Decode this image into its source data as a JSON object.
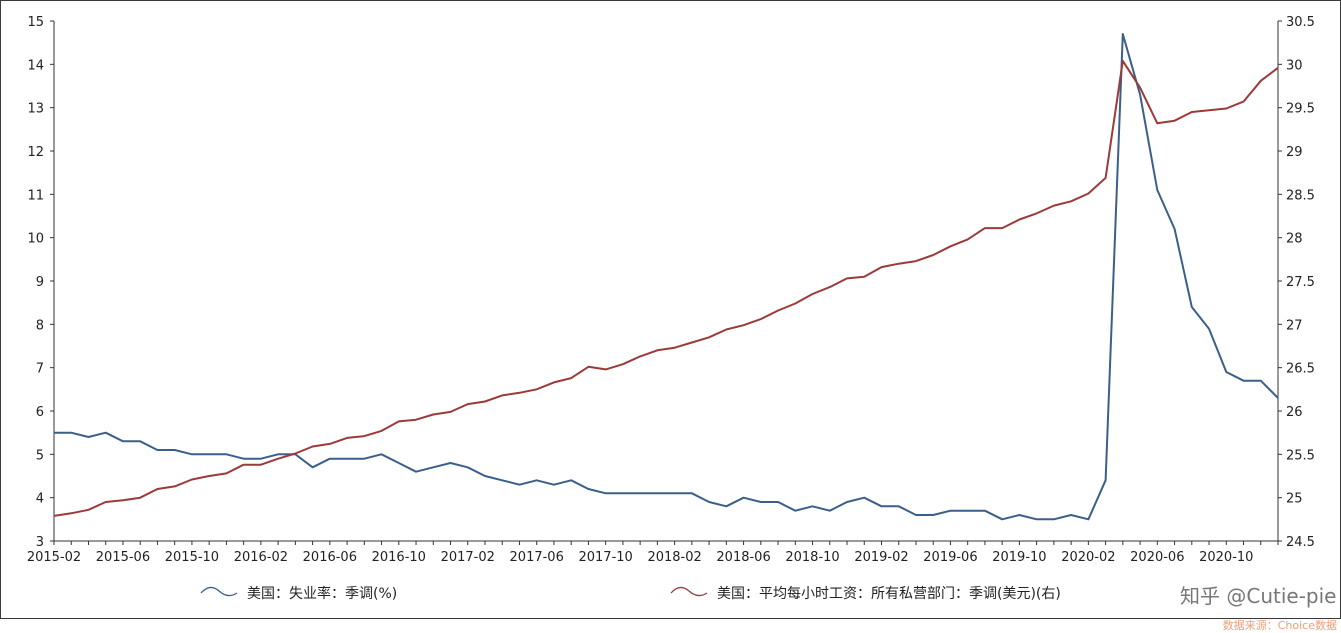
{
  "chart_data": {
    "type": "line",
    "x": [
      "2015-02",
      "2015-03",
      "2015-04",
      "2015-05",
      "2015-06",
      "2015-07",
      "2015-08",
      "2015-09",
      "2015-10",
      "2015-11",
      "2015-12",
      "2016-01",
      "2016-02",
      "2016-03",
      "2016-04",
      "2016-05",
      "2016-06",
      "2016-07",
      "2016-08",
      "2016-09",
      "2016-10",
      "2016-11",
      "2016-12",
      "2017-01",
      "2017-02",
      "2017-03",
      "2017-04",
      "2017-05",
      "2017-06",
      "2017-07",
      "2017-08",
      "2017-09",
      "2017-10",
      "2017-11",
      "2017-12",
      "2018-01",
      "2018-02",
      "2018-03",
      "2018-04",
      "2018-05",
      "2018-06",
      "2018-07",
      "2018-08",
      "2018-09",
      "2018-10",
      "2018-11",
      "2018-12",
      "2019-01",
      "2019-02",
      "2019-03",
      "2019-04",
      "2019-05",
      "2019-06",
      "2019-07",
      "2019-08",
      "2019-09",
      "2019-10",
      "2019-11",
      "2019-12",
      "2020-01",
      "2020-02",
      "2020-03",
      "2020-04",
      "2020-05",
      "2020-06",
      "2020-07",
      "2020-08",
      "2020-09",
      "2020-10",
      "2020-11",
      "2020-12",
      "2021-01"
    ],
    "x_tick_labels": [
      "2015-02",
      "2015-06",
      "2015-10",
      "2016-02",
      "2016-06",
      "2016-10",
      "2017-02",
      "2017-06",
      "2017-10",
      "2018-02",
      "2018-06",
      "2018-10",
      "2019-02",
      "2019-06",
      "2019-10",
      "2020-02",
      "2020-06",
      "2020-10"
    ],
    "series": [
      {
        "name": "美国：失业率：季调(%)",
        "axis": "left",
        "color": "#3b5f8a",
        "values": [
          5.5,
          5.5,
          5.4,
          5.5,
          5.3,
          5.3,
          5.1,
          5.1,
          5.0,
          5.0,
          5.0,
          4.9,
          4.9,
          5.0,
          5.0,
          4.7,
          4.9,
          4.9,
          4.9,
          5.0,
          4.8,
          4.6,
          4.7,
          4.8,
          4.7,
          4.5,
          4.4,
          4.3,
          4.4,
          4.3,
          4.4,
          4.2,
          4.1,
          4.1,
          4.1,
          4.1,
          4.1,
          4.1,
          3.9,
          3.8,
          4.0,
          3.9,
          3.9,
          3.7,
          3.8,
          3.7,
          3.9,
          4.0,
          3.8,
          3.8,
          3.6,
          3.6,
          3.7,
          3.7,
          3.7,
          3.5,
          3.6,
          3.5,
          3.5,
          3.6,
          3.5,
          4.4,
          14.7,
          13.3,
          11.1,
          10.2,
          8.4,
          7.9,
          6.9,
          6.7,
          6.7,
          6.3
        ]
      },
      {
        "name": "美国：平均每小时工资：所有私营部门：季调(美元)(右)",
        "axis": "right",
        "color": "#9c3a3a",
        "values": [
          24.79,
          24.82,
          24.86,
          24.95,
          24.97,
          25.0,
          25.1,
          25.13,
          25.21,
          25.25,
          25.28,
          25.38,
          25.38,
          25.45,
          25.51,
          25.59,
          25.62,
          25.69,
          25.71,
          25.77,
          25.88,
          25.9,
          25.96,
          25.99,
          26.08,
          26.11,
          26.18,
          26.21,
          26.25,
          26.33,
          26.38,
          26.51,
          26.48,
          26.54,
          26.63,
          26.7,
          26.73,
          26.79,
          26.85,
          26.94,
          26.99,
          27.06,
          27.16,
          27.24,
          27.35,
          27.43,
          27.53,
          27.55,
          27.66,
          27.7,
          27.73,
          27.8,
          27.9,
          27.98,
          28.11,
          28.11,
          28.21,
          28.28,
          28.37,
          28.42,
          28.51,
          28.69,
          30.04,
          29.73,
          29.32,
          29.35,
          29.45,
          29.47,
          29.49,
          29.57,
          29.81,
          29.96
        ]
      }
    ],
    "y_left": {
      "ylim": [
        3,
        15
      ],
      "ticks": [
        "15",
        "14",
        "13",
        "12",
        "11",
        "10",
        "9",
        "8",
        "7",
        "6",
        "5",
        "4",
        "3"
      ]
    },
    "y_right": {
      "ylim": [
        24.5,
        30.5
      ],
      "ticks": [
        "30.5",
        "30",
        "29.5",
        "29",
        "28.5",
        "28",
        "27.5",
        "27",
        "26.5",
        "26",
        "25.5",
        "25",
        "24.5"
      ]
    },
    "grid": false,
    "legend_position": "bottom"
  },
  "watermark": "知乎 @Cutie-pie",
  "source": "数据来源：Choice数据"
}
